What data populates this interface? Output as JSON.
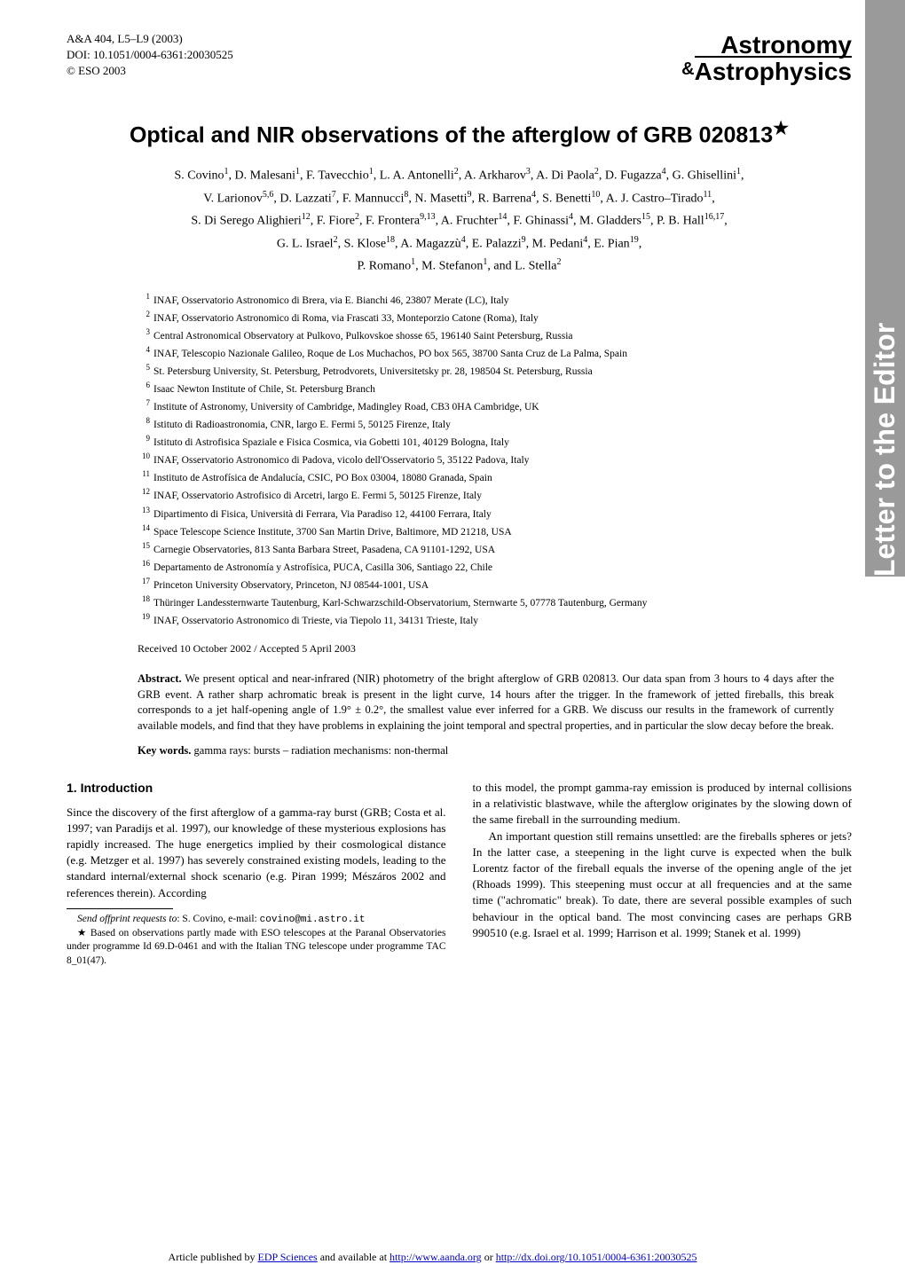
{
  "sideTab": "Letter to the Editor",
  "header": {
    "citation": "A&A 404, L5–L9 (2003)",
    "doi": "DOI: 10.1051/0004-6361:20030525",
    "copyright": "© ESO 2003",
    "logoTop": "Astronomy",
    "logoAmp": "&",
    "logoBottom": "Astrophysics"
  },
  "title": "Optical and NIR observations of the afterglow of GRB 020813",
  "titleStar": "★",
  "authorsHtml": "S. Covino<sup>1</sup>, D. Malesani<sup>1</sup>, F. Tavecchio<sup>1</sup>, L. A. Antonelli<sup>2</sup>, A. Arkharov<sup>3</sup>, A. Di Paola<sup>2</sup>, D. Fugazza<sup>4</sup>, G. Ghisellini<sup>1</sup>,<br>V. Larionov<sup>5,6</sup>, D. Lazzati<sup>7</sup>, F. Mannucci<sup>8</sup>, N. Masetti<sup>9</sup>, R. Barrena<sup>4</sup>, S. Benetti<sup>10</sup>, A. J. Castro–Tirado<sup>11</sup>,<br>S. Di Serego Alighieri<sup>12</sup>, F. Fiore<sup>2</sup>, F. Frontera<sup>9,13</sup>, A. Fruchter<sup>14</sup>, F. Ghinassi<sup>4</sup>, M. Gladders<sup>15</sup>, P. B. Hall<sup>16,17</sup>,<br>G. L. Israel<sup>2</sup>, S. Klose<sup>18</sup>, A. Magazzù<sup>4</sup>, E. Palazzi<sup>9</sup>, M. Pedani<sup>4</sup>, E. Pian<sup>19</sup>,<br>P. Romano<sup>1</sup>, M. Stefanon<sup>1</sup>, and L. Stella<sup>2</sup>",
  "affiliations": [
    "INAF, Osservatorio Astronomico di Brera, via E. Bianchi 46, 23807 Merate (LC), Italy",
    "INAF, Osservatorio Astronomico di Roma, via Frascati 33, Monteporzio Catone (Roma), Italy",
    "Central Astronomical Observatory at Pulkovo, Pulkovskoe shosse 65, 196140 Saint Petersburg, Russia",
    "INAF, Telescopio Nazionale Galileo, Roque de Los Muchachos, PO box 565, 38700 Santa Cruz de La Palma, Spain",
    "St. Petersburg University, St. Petersburg, Petrodvorets, Universitetsky pr. 28, 198504 St. Petersburg, Russia",
    "Isaac Newton Institute of Chile, St. Petersburg Branch",
    "Institute of Astronomy, University of Cambridge, Madingley Road, CB3 0HA Cambridge, UK",
    "Istituto di Radioastronomia, CNR, largo E. Fermi 5, 50125 Firenze, Italy",
    "Istituto di Astrofisica Spaziale e Fisica Cosmica, via Gobetti 101, 40129 Bologna, Italy",
    "INAF, Osservatorio Astronomico di Padova, vicolo dell'Osservatorio 5, 35122 Padova, Italy",
    "Instituto de Astrofísica de Andalucía, CSIC, PO Box 03004, 18080 Granada, Spain",
    "INAF, Osservatorio Astrofisico di Arcetri, largo E. Fermi 5, 50125 Firenze, Italy",
    "Dipartimento di Fisica, Università di Ferrara, Via Paradiso 12, 44100 Ferrara, Italy",
    "Space Telescope Science Institute, 3700 San Martin Drive, Baltimore, MD 21218, USA",
    "Carnegie Observatories, 813 Santa Barbara Street, Pasadena, CA 91101-1292, USA",
    "Departamento de Astronomía y Astrofísica, PUCA, Casilla 306, Santiago 22, Chile",
    "Princeton University Observatory, Princeton, NJ 08544-1001, USA",
    "Thüringer Landessternwarte Tautenburg, Karl-Schwarzschild-Observatorium, Sternwarte 5, 07778 Tautenburg, Germany",
    "INAF, Osservatorio Astronomico di Trieste, via Tiepolo 11, 34131 Trieste, Italy"
  ],
  "received": "Received 10 October 2002 / Accepted 5 April 2003",
  "abstractLabel": "Abstract.",
  "abstractText": "We present optical and near-infrared (NIR) photometry of the bright afterglow of GRB 020813. Our data span from 3 hours to 4 days after the GRB event. A rather sharp achromatic break is present in the light curve, 14 hours after the trigger. In the framework of jetted fireballs, this break corresponds to a jet half-opening angle of 1.9° ± 0.2°, the smallest value ever inferred for a GRB. We discuss our results in the framework of currently available models, and find that they have problems in explaining the joint temporal and spectral properties, and in particular the slow decay before the break.",
  "keywordsLabel": "Key words.",
  "keywordsText": "gamma rays: bursts – radiation mechanisms: non-thermal",
  "sectionHeading": "1. Introduction",
  "leftCol": {
    "p1": "Since the discovery of the first afterglow of a gamma-ray burst (GRB; Costa et al. 1997; van Paradijs et al. 1997), our knowledge of these mysterious explosions has rapidly increased. The huge energetics implied by their cosmological distance (e.g. Metzger et al. 1997) has severely constrained existing models, leading to the standard internal/external shock scenario (e.g. Piran 1999; Mészáros 2002 and references therein). According",
    "footnote1Label": "Send offprint requests to",
    "footnote1": ": S. Covino, e-mail: ",
    "footnote1Email": "covino@mi.astro.it",
    "footnote2Star": "★",
    "footnote2": " Based on observations partly made with ESO telescopes at the Paranal Observatories under programme Id 69.D-0461 and with the Italian TNG telescope under programme TAC 8_01(47)."
  },
  "rightCol": {
    "p1": "to this model, the prompt gamma-ray emission is produced by internal collisions in a relativistic blastwave, while the afterglow originates by the slowing down of the same fireball in the surrounding medium.",
    "p2": "An important question still remains unsettled: are the fireballs spheres or jets? In the latter case, a steepening in the light curve is expected when the bulk Lorentz factor of the fireball equals the inverse of the opening angle of the jet (Rhoads 1999). This steepening must occur at all frequencies and at the same time (\"achromatic\" break). To date, there are several possible examples of such behaviour in the optical band. The most convincing cases are perhaps GRB 990510 (e.g. Israel et al. 1999; Harrison et al. 1999; Stanek et al. 1999)"
  },
  "footer": {
    "prefix": "Article published by ",
    "link1": "EDP Sciences",
    "mid1": " and available at ",
    "link2": "http://www.aanda.org",
    "mid2": " or ",
    "link3": "http://dx.doi.org/10.1051/0004-6361:20030525"
  }
}
